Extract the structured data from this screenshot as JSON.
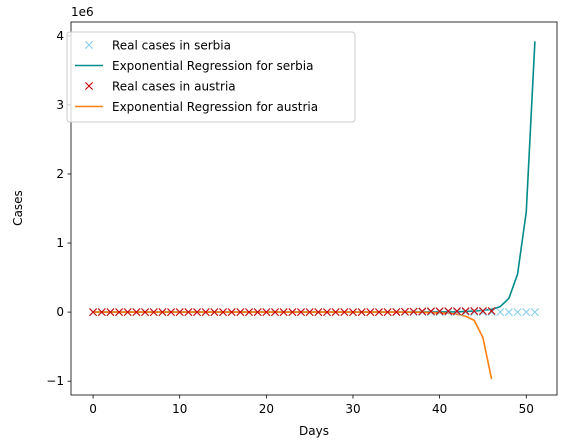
{
  "chart_data": {
    "type": "line",
    "xlabel": "Days",
    "ylabel": "Cases",
    "y_offset_label": "1e6",
    "xlim": [
      -2.55,
      53.55
    ],
    "ylim": [
      -1.2,
      4.2
    ],
    "y_scale_factor": 1000000,
    "x_ticks": [
      0,
      10,
      20,
      30,
      40,
      50
    ],
    "y_ticks": [
      -1,
      0,
      1,
      2,
      3,
      4
    ],
    "grid": false,
    "legend_position": "upper-left",
    "series": [
      {
        "name": "Real cases in serbia",
        "kind": "markers",
        "marker": "x",
        "color": "#87ceeb",
        "x": [
          0,
          1,
          2,
          3,
          4,
          5,
          6,
          7,
          8,
          9,
          10,
          11,
          12,
          13,
          14,
          15,
          16,
          17,
          18,
          19,
          20,
          21,
          22,
          23,
          24,
          25,
          26,
          27,
          28,
          29,
          30,
          31,
          32,
          33,
          34,
          35,
          36,
          37,
          38,
          39,
          40,
          41,
          42,
          43,
          44,
          45,
          46,
          47,
          48,
          49,
          50,
          51
        ],
        "y": [
          0,
          0,
          0,
          0,
          0,
          0,
          0,
          0,
          0,
          0,
          0,
          0,
          0,
          0,
          0,
          0,
          0,
          0,
          0,
          0,
          0,
          0,
          0,
          0,
          0,
          0,
          0,
          0,
          0,
          0,
          0,
          0,
          0,
          0,
          0,
          0,
          0,
          0,
          0,
          0,
          0,
          0,
          0,
          0,
          0,
          0,
          0,
          0,
          0,
          0,
          0,
          0
        ]
      },
      {
        "name": "Exponential Regression for serbia",
        "kind": "line",
        "color": "#008b8b",
        "x": [
          0,
          5,
          10,
          15,
          20,
          25,
          30,
          35,
          40,
          42,
          44,
          45,
          46,
          47,
          48,
          49,
          50,
          51
        ],
        "y": [
          0,
          0,
          0,
          0,
          0,
          0,
          0,
          0,
          0.002,
          0.005,
          0.015,
          0.025,
          0.04,
          0.08,
          0.2,
          0.55,
          1.45,
          3.92
        ]
      },
      {
        "name": "Real cases in austria",
        "kind": "markers",
        "marker": "x",
        "color": "#cc0000",
        "x": [
          0,
          1,
          2,
          3,
          4,
          5,
          6,
          7,
          8,
          9,
          10,
          11,
          12,
          13,
          14,
          15,
          16,
          17,
          18,
          19,
          20,
          21,
          22,
          23,
          24,
          25,
          26,
          27,
          28,
          29,
          30,
          31,
          32,
          33,
          34,
          35,
          36,
          37,
          38,
          39,
          40,
          41,
          42,
          43,
          44,
          45,
          46
        ],
        "y": [
          0,
          0,
          0,
          0,
          0,
          0,
          0,
          0,
          0,
          0,
          0,
          0,
          0,
          0,
          0,
          0,
          0,
          0,
          0,
          0,
          0,
          0,
          0,
          0,
          0,
          0,
          0,
          0,
          0,
          0,
          0,
          0,
          0,
          0,
          0,
          0.002,
          0.005,
          0.008,
          0.01,
          0.012,
          0.013,
          0.014,
          0.015,
          0.015,
          0.016,
          0.016,
          0.017
        ]
      },
      {
        "name": "Exponential Regression for austria",
        "kind": "line",
        "color": "#ff7f0e",
        "x": [
          0,
          5,
          10,
          15,
          20,
          25,
          30,
          35,
          38,
          40,
          41,
          42,
          43,
          44,
          45,
          46
        ],
        "y": [
          0,
          0,
          0,
          0,
          0,
          0,
          0,
          0,
          -0.003,
          -0.01,
          -0.018,
          -0.03,
          -0.06,
          -0.12,
          -0.37,
          -0.97
        ]
      }
    ]
  }
}
